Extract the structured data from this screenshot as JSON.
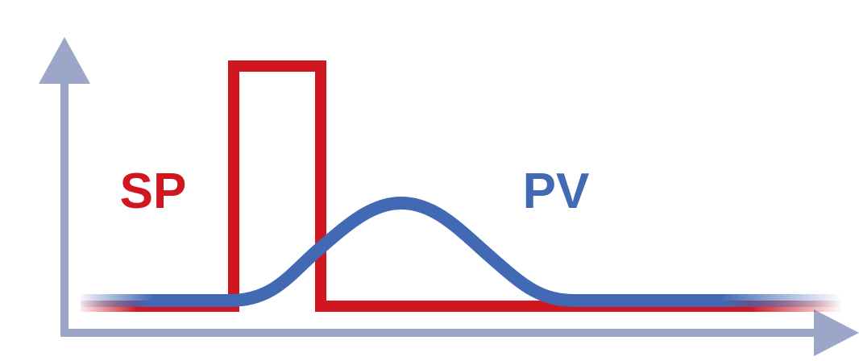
{
  "labels": {
    "sp": "SP",
    "pv": "PV"
  }
}
